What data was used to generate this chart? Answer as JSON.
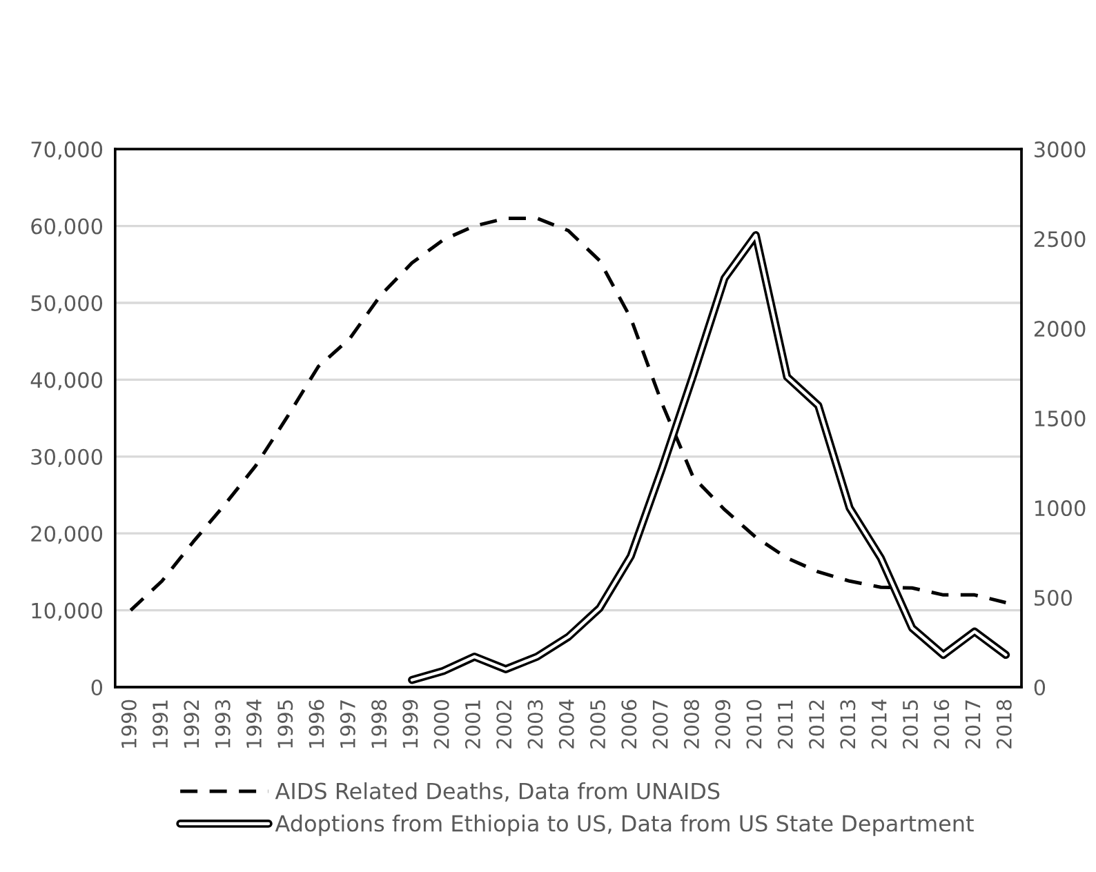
{
  "chart_data": {
    "type": "line",
    "categories": [
      "1990",
      "1991",
      "1992",
      "1993",
      "1994",
      "1995",
      "1996",
      "1997",
      "1998",
      "1999",
      "2000",
      "2001",
      "2002",
      "2003",
      "2004",
      "2005",
      "2006",
      "2007",
      "2008",
      "2009",
      "2010",
      "2011",
      "2012",
      "2013",
      "2014",
      "2015",
      "2016",
      "2017",
      "2018"
    ],
    "series": [
      {
        "name": "AIDS Related Deaths, Data from UNAIDS",
        "color": "#000000",
        "line_style": "dashed",
        "values": [
          10000,
          13800,
          18900,
          23700,
          28800,
          35100,
          41700,
          45300,
          51000,
          55200,
          58200,
          60000,
          61000,
          61000,
          59400,
          55500,
          48000,
          36900,
          27300,
          23100,
          19500,
          16800,
          15000,
          13800,
          13000,
          12900,
          12000,
          12000,
          11000
        ]
      },
      {
        "name": "Adoptions from Ethiopia to US, Data from US State Department",
        "color": "#000000",
        "line_style": "solid",
        "axis": "y2",
        "values": [
          null,
          null,
          null,
          null,
          null,
          null,
          null,
          null,
          null,
          40,
          90,
          170,
          100,
          170,
          280,
          440,
          730,
          1220,
          1740,
          2280,
          2520,
          1730,
          1570,
          1000,
          720,
          330,
          180,
          310,
          180
        ]
      }
    ],
    "ylim": [
      0,
      70000
    ],
    "yticks": [
      0,
      {
        "value": 10000,
        "label": "10,000"
      },
      {
        "value": 20000,
        "label": "20,000"
      },
      {
        "value": 30000,
        "label": "30,000"
      },
      {
        "value": 40000,
        "label": "40,000"
      },
      {
        "value": 50000,
        "label": "50,000"
      },
      {
        "value": 60000,
        "label": "60,000"
      },
      {
        "value": 70000,
        "label": "70,000"
      }
    ],
    "y2lim": [
      0,
      3000
    ],
    "y2ticks": [
      0,
      500,
      1000,
      1500,
      2000,
      2500,
      3000
    ],
    "grid": "y",
    "legend": "bottom"
  }
}
